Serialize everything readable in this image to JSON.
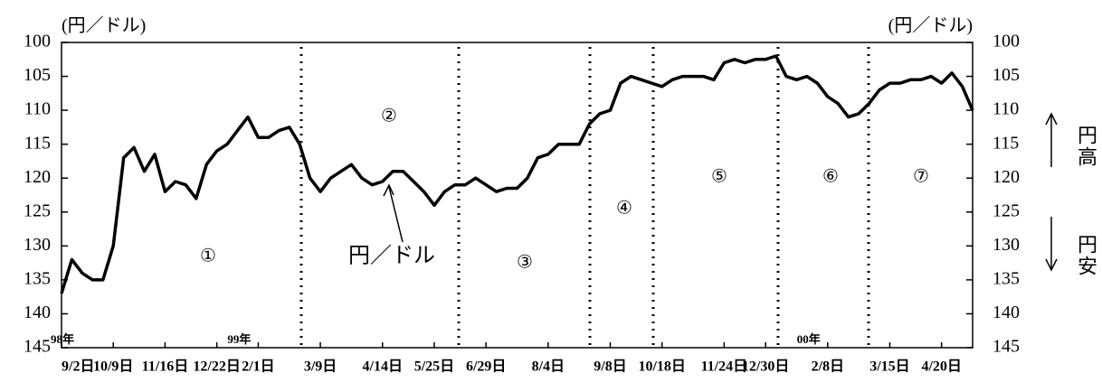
{
  "chart_data": {
    "type": "line",
    "y_label": "(円／ドル)",
    "y2_label": "(円／ドル)",
    "categories": [
      "9/2日",
      null,
      null,
      null,
      null,
      "10/9日",
      null,
      null,
      null,
      null,
      "11/16日",
      null,
      null,
      null,
      null,
      "12/22日",
      null,
      null,
      null,
      "2/1日",
      null,
      null,
      null,
      null,
      null,
      "3/9日",
      null,
      null,
      null,
      null,
      null,
      "4/14日",
      null,
      null,
      null,
      null,
      "5/25日",
      null,
      null,
      null,
      null,
      "6/29日",
      null,
      null,
      null,
      null,
      null,
      "8/4日",
      null,
      null,
      null,
      null,
      null,
      "9/8日",
      null,
      null,
      null,
      null,
      "10/18日",
      null,
      null,
      null,
      null,
      null,
      "11/24日",
      null,
      null,
      null,
      "12/30日",
      null,
      null,
      null,
      null,
      null,
      "2/8日",
      null,
      null,
      null,
      null,
      null,
      "3/15日",
      null,
      null,
      null,
      null,
      "4/20日",
      null,
      null,
      null
    ],
    "category_years": [
      "98年",
      null,
      null,
      null,
      null,
      null,
      null,
      null,
      null,
      null,
      null,
      null,
      null,
      null,
      null,
      null,
      null,
      null,
      null,
      "99年",
      null,
      null,
      null,
      null,
      null,
      null,
      null,
      null,
      null,
      null,
      null,
      null,
      null,
      null,
      null,
      null,
      null,
      null,
      null,
      null,
      null,
      null,
      null,
      null,
      null,
      null,
      null,
      null,
      null,
      null,
      null,
      null,
      null,
      null,
      null,
      null,
      null,
      null,
      null,
      null,
      null,
      null,
      null,
      null,
      null,
      null,
      null,
      null,
      null,
      null,
      null,
      null,
      null,
      null,
      "00年",
      null,
      null,
      null,
      null,
      null,
      null,
      null,
      null,
      null,
      null,
      null,
      null,
      null,
      null
    ],
    "series": [
      {
        "name": "円／ドル",
        "color": "#000000",
        "values": [
          137,
          132,
          134,
          135,
          135,
          130,
          117,
          115.5,
          119,
          116.5,
          122,
          120.5,
          121,
          123,
          118,
          116,
          115,
          113,
          111,
          114,
          114,
          113,
          112.5,
          115,
          120,
          122,
          120,
          119,
          118,
          120,
          121,
          120.5,
          119,
          119,
          120.5,
          122,
          124,
          122,
          121,
          121,
          120,
          121,
          122,
          121.5,
          121.5,
          120,
          117,
          116.5,
          115,
          115,
          115,
          112,
          110.5,
          110,
          106,
          105,
          105.5,
          106,
          106.5,
          105.5,
          105,
          105,
          105,
          105.5,
          103,
          102.5,
          103,
          102.5,
          102.5,
          102,
          105,
          105.5,
          105,
          106,
          108,
          109,
          111,
          110.5,
          109,
          107,
          106,
          106,
          105.5,
          105.5,
          105,
          106,
          104.5,
          106.5,
          110
        ]
      }
    ],
    "ylim": [
      100,
      145
    ],
    "yticks": [
      100,
      105,
      110,
      115,
      120,
      125,
      130,
      135,
      140,
      145
    ],
    "y2lim": [
      100,
      145
    ],
    "y2ticks": [
      100,
      105,
      110,
      115,
      120,
      125,
      130,
      135,
      140,
      145
    ],
    "y_inverted": true,
    "annotations": [
      "①",
      "②",
      "③",
      "④",
      "⑤",
      "⑥",
      "⑦"
    ],
    "right_notes": [
      "円高",
      "円安"
    ]
  }
}
